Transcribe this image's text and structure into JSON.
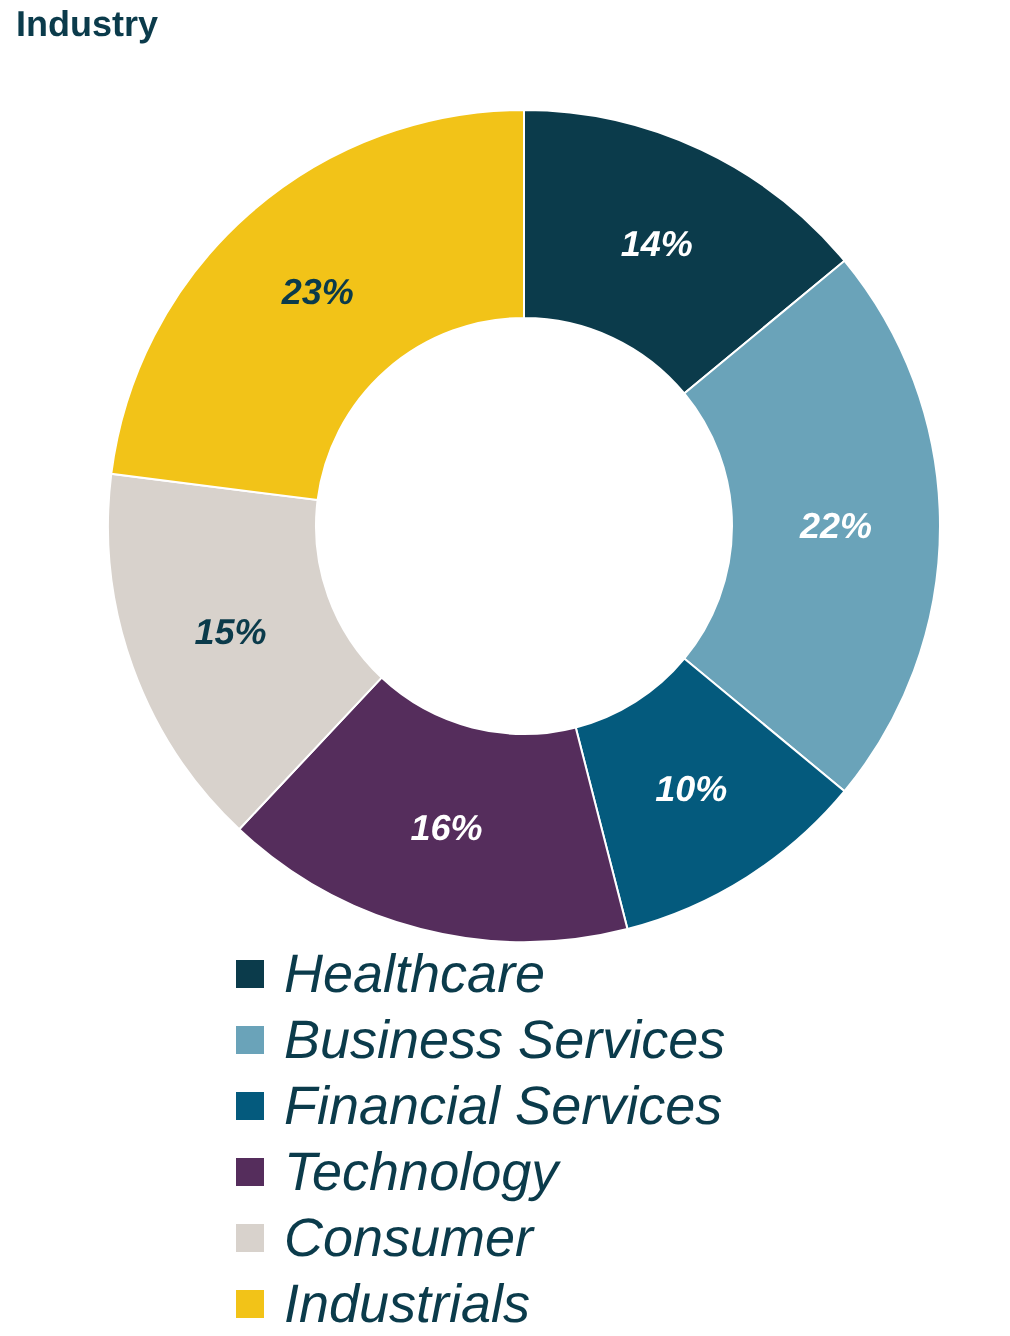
{
  "chart_data": {
    "type": "donut",
    "title": "Industry",
    "categories": [
      "Healthcare",
      "Business Services",
      "Financial Services",
      "Technology",
      "Consumer",
      "Industrials"
    ],
    "values": [
      14,
      22,
      10,
      16,
      15,
      23
    ],
    "colors": [
      "#0b3b4b",
      "#6aa3b9",
      "#045a7d",
      "#552d5c",
      "#d8d2cc",
      "#f2c318"
    ],
    "value_labels": [
      "14%",
      "22%",
      "10%",
      "16%",
      "15%",
      "23%"
    ],
    "legend": "bottom"
  }
}
